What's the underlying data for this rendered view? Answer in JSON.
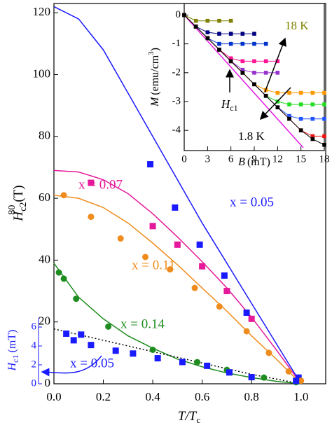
{
  "chart_data": [
    {
      "type": "scatter",
      "xlabel": {
        "main": "T/T",
        "sub": "c"
      },
      "ylabel": {
        "main": "H",
        "sub": "c2",
        "sup": "80",
        "unit": "(T)"
      },
      "y2label": {
        "main": "H",
        "sub": "c1",
        "unit": "(mT)"
      },
      "xlim": [
        0,
        1.1
      ],
      "ylim": [
        0,
        123
      ],
      "xticks": [
        {
          "value": 0,
          "label": "0.0"
        },
        {
          "value": 0.2,
          "label": "0.2"
        },
        {
          "value": 0.4,
          "label": "0.4"
        },
        {
          "value": 0.6,
          "label": "0.6"
        },
        {
          "value": 0.8,
          "label": "0.8"
        },
        {
          "value": 1,
          "label": "1.0"
        }
      ],
      "yticks": [
        0,
        20,
        40,
        60,
        80,
        100,
        120
      ],
      "y2lim": [
        0,
        7
      ],
      "y2ticks": [
        0,
        2,
        4,
        6
      ],
      "y2color": "#1a1aff",
      "series": [
        {
          "name": "x = 0.05",
          "color": "#1a1aff",
          "marker": "square",
          "x": [
            0.39,
            0.49,
            0.59,
            0.69,
            0.78,
            0.99
          ],
          "values": [
            71,
            57,
            45,
            35,
            23,
            2
          ]
        },
        {
          "name": "x = 0.07",
          "color": "#e6199a",
          "marker": "square",
          "x": [
            0.15,
            0.4,
            0.5,
            0.6,
            0.7,
            0.8
          ],
          "values": [
            65,
            51,
            45,
            38,
            30,
            21
          ]
        },
        {
          "name": "x = 0.11",
          "color": "#f08c1e",
          "marker": "circle",
          "x": [
            0.04,
            0.15,
            0.27,
            0.37,
            0.47,
            0.57,
            0.67,
            0.78,
            0.87,
            0.95,
            1.0
          ],
          "values": [
            61,
            54,
            47,
            41,
            37,
            31,
            25,
            17,
            10,
            4,
            1
          ]
        },
        {
          "name": "x = 0.14",
          "color": "#1e8c1e",
          "marker": "circle",
          "x": [
            0.02,
            0.04,
            0.09,
            0.22,
            0.4,
            0.58,
            0.7,
            0.85,
            0.98
          ],
          "values": [
            36,
            34,
            27.5,
            18.5,
            11,
            7,
            4.5,
            2,
            0.5
          ]
        },
        {
          "name": "x = 0.05",
          "color": "#1a1aff",
          "marker": "square",
          "axis": "y2",
          "x": [
            0.05,
            0.08,
            0.11,
            0.15,
            0.25,
            0.32,
            0.42,
            0.52,
            0.62,
            0.71,
            0.8,
            0.98
          ],
          "values": [
            5.3,
            4.6,
            5.2,
            4.1,
            3.5,
            3.2,
            2.7,
            2.3,
            1.9,
            1.2,
            0.7,
            0.3
          ]
        }
      ],
      "fits": [
        {
          "color": "#1a1aff",
          "x": [
            0,
            0.1,
            0.2,
            0.3,
            0.4,
            0.5,
            0.6,
            0.7,
            0.8,
            0.9,
            1.0
          ],
          "values": [
            122,
            118,
            108,
            94,
            80,
            66,
            52,
            39,
            26,
            13,
            0
          ]
        },
        {
          "color": "#e6199a",
          "x": [
            0,
            0.1,
            0.2,
            0.3,
            0.4,
            0.5,
            0.6,
            0.7,
            0.8,
            0.9,
            1.0
          ],
          "values": [
            69,
            68.5,
            66,
            61.5,
            55,
            47.5,
            39.5,
            31,
            21.5,
            11,
            0
          ]
        },
        {
          "color": "#f08c1e",
          "x": [
            0,
            0.1,
            0.2,
            0.3,
            0.4,
            0.5,
            0.6,
            0.7,
            0.8,
            0.9,
            1.0
          ],
          "values": [
            61,
            60,
            57,
            52,
            45.5,
            38.5,
            31,
            23.5,
            15.5,
            8,
            0
          ]
        },
        {
          "color": "#1e8c1e",
          "x": [
            0,
            0.1,
            0.2,
            0.3,
            0.4,
            0.5,
            0.6,
            0.7,
            0.8,
            0.9,
            1.0
          ],
          "values": [
            39,
            28,
            21,
            15.5,
            11.5,
            8,
            5.5,
            3.5,
            2,
            0.8,
            0
          ]
        },
        {
          "color": "#1a1aff",
          "axis": "y2",
          "dotted": true,
          "x": [
            0,
            0.1,
            0.2,
            0.3,
            0.4,
            0.5,
            0.6,
            0.7,
            0.8,
            0.9,
            1.0
          ],
          "values": [
            5.8,
            5.2,
            4.6,
            4.0,
            3.4,
            2.8,
            2.2,
            1.6,
            1.0,
            0.5,
            0
          ]
        }
      ]
    },
    {
      "type": "line",
      "xlabel": {
        "main": "B",
        "unit": "(mT)"
      },
      "ylabel": {
        "main": "M",
        "unit": "(emu/cm",
        "sup": "3",
        "end": ")"
      },
      "annotations": {
        "high": "18 K",
        "low": "1.8 K",
        "hc1": {
          "main": "H",
          "sub": "c1"
        }
      },
      "xlim": [
        0,
        18
      ],
      "ylim": [
        -4.7,
        0.4
      ],
      "xticks": [
        0,
        3,
        6,
        9,
        12,
        15,
        18
      ],
      "yticks": [
        0,
        -1,
        -2,
        -3,
        -4
      ],
      "x": [
        0,
        1.5,
        3,
        4.5,
        6,
        7.5,
        9,
        10.5,
        12,
        13.5,
        15,
        16.5,
        18
      ],
      "series": [
        {
          "color": "#808000",
          "values": [
            0,
            -0.2,
            -0.2,
            -0.2,
            -0.2,
            null,
            null,
            null,
            null,
            null,
            null,
            null,
            null
          ]
        },
        {
          "color": "#000080",
          "values": [
            0,
            -0.4,
            -0.6,
            -0.65,
            -0.65,
            -0.65,
            -0.65,
            null,
            null,
            null,
            null,
            null,
            null
          ]
        },
        {
          "color": "#0033cc",
          "values": [
            0,
            -0.4,
            -0.8,
            -1.0,
            -1.0,
            -1.0,
            -1.0,
            -1.0,
            null,
            null,
            null,
            null,
            null
          ]
        },
        {
          "color": "#ff1493",
          "values": [
            0,
            -0.4,
            -0.8,
            -1.2,
            -1.5,
            -1.6,
            -1.6,
            -1.6,
            -1.6,
            null,
            null,
            null,
            null
          ]
        },
        {
          "color": "#9932cc",
          "values": [
            0,
            -0.4,
            -0.8,
            -1.2,
            -1.6,
            -1.9,
            -2.0,
            -2.0,
            -2.0,
            null,
            null,
            null,
            null
          ]
        },
        {
          "color": "#ff9900",
          "values": [
            0,
            -0.4,
            -0.8,
            -1.2,
            -1.6,
            -2.0,
            -2.4,
            -2.6,
            -2.7,
            -2.7,
            -2.7,
            -2.7,
            -2.7
          ]
        },
        {
          "color": "#22dd22",
          "values": [
            0,
            -0.4,
            -0.8,
            -1.2,
            -1.6,
            -2.0,
            -2.4,
            -2.8,
            -3.0,
            -3.1,
            -3.1,
            -3.1,
            -3.1
          ]
        },
        {
          "color": "#2255ff",
          "values": [
            0,
            -0.4,
            -0.8,
            -1.2,
            -1.6,
            -2.0,
            -2.4,
            -2.8,
            -3.2,
            -3.5,
            -3.6,
            -3.6,
            -3.6
          ]
        },
        {
          "color": "#ee1111",
          "values": [
            0,
            -0.4,
            -0.8,
            -1.2,
            -1.6,
            -2.0,
            -2.4,
            -2.8,
            -3.2,
            -3.6,
            -4.0,
            -4.2,
            -4.2
          ]
        },
        {
          "color": "#000000",
          "values": [
            0,
            -0.4,
            -0.8,
            -1.2,
            -1.6,
            -2.0,
            -2.4,
            -2.8,
            -3.2,
            -3.6,
            -4.0,
            -4.3,
            -4.5
          ]
        }
      ],
      "fit": {
        "color": "#e619e6",
        "x": [
          0,
          15.3
        ],
        "values": [
          0,
          -4.6
        ]
      }
    }
  ]
}
